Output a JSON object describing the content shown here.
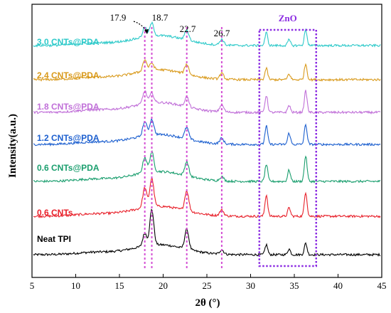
{
  "chart_data": {
    "type": "line",
    "title": "",
    "xlabel": "2θ (°)",
    "ylabel": "Intensity(a.u.)",
    "xlim": [
      5,
      45
    ],
    "x_ticks": [
      5,
      10,
      15,
      20,
      25,
      30,
      35,
      40,
      45
    ],
    "y_ticks_visible": false,
    "grid": false,
    "legend": "inline labels left of each curve",
    "peaks": [
      {
        "label": "17.9",
        "x": 17.9
      },
      {
        "label": "18.7",
        "x": 18.7
      },
      {
        "label": "22.7",
        "x": 22.7
      },
      {
        "label": "26.7",
        "x": 26.7
      }
    ],
    "zno_region": {
      "label": "ZnO",
      "x_start": 31.0,
      "x_end": 37.5,
      "color": "#8b2be2"
    },
    "peak_line_color": "#d44fd4",
    "series": [
      {
        "name": "Neat TPI",
        "color": "#000000",
        "offset": 0,
        "peaks": [
          [
            17.9,
            18
          ],
          [
            18.7,
            50
          ],
          [
            22.7,
            28
          ],
          [
            26.7,
            6
          ],
          [
            31.8,
            14
          ],
          [
            34.4,
            8
          ],
          [
            36.3,
            16
          ]
        ]
      },
      {
        "name": "0.6 CNTs",
        "color": "#e8202a",
        "offset": 1,
        "peaks": [
          [
            17.9,
            28
          ],
          [
            18.7,
            40
          ],
          [
            22.7,
            28
          ],
          [
            26.7,
            8
          ],
          [
            31.8,
            30
          ],
          [
            34.4,
            12
          ],
          [
            36.3,
            34
          ]
        ]
      },
      {
        "name": "0.6 CNTs@PDA",
        "color": "#1a9e6e",
        "offset": 2,
        "peaks": [
          [
            17.9,
            22
          ],
          [
            18.7,
            28
          ],
          [
            22.7,
            20
          ],
          [
            26.7,
            6
          ],
          [
            31.8,
            24
          ],
          [
            34.4,
            16
          ],
          [
            36.3,
            36
          ]
        ]
      },
      {
        "name": "1.2 CNTs@PDA",
        "color": "#1c5fcf",
        "offset": 3,
        "peaks": [
          [
            17.9,
            20
          ],
          [
            18.7,
            22
          ],
          [
            22.7,
            16
          ],
          [
            26.7,
            8
          ],
          [
            31.8,
            26
          ],
          [
            34.4,
            16
          ],
          [
            36.3,
            28
          ]
        ]
      },
      {
        "name": "1.8 CNTs@PDA",
        "color": "#c06fd8",
        "offset": 4,
        "peaks": [
          [
            17.9,
            18
          ],
          [
            18.7,
            14
          ],
          [
            22.7,
            14
          ],
          [
            26.7,
            10
          ],
          [
            31.8,
            24
          ],
          [
            34.4,
            10
          ],
          [
            36.3,
            30
          ]
        ]
      },
      {
        "name": "2.4 CNTs@PDA",
        "color": "#d99a1c",
        "offset": 5,
        "peaks": [
          [
            17.9,
            16
          ],
          [
            18.7,
            10
          ],
          [
            22.7,
            14
          ],
          [
            26.7,
            8
          ],
          [
            31.8,
            16
          ],
          [
            34.4,
            8
          ],
          [
            36.3,
            22
          ]
        ]
      },
      {
        "name": "3.0 CNTs@PDA",
        "color": "#2cc9c9",
        "offset": 6,
        "peaks": [
          [
            17.9,
            14
          ],
          [
            18.7,
            18
          ],
          [
            22.7,
            14
          ],
          [
            26.7,
            8
          ],
          [
            31.8,
            18
          ],
          [
            34.4,
            8
          ],
          [
            36.3,
            22
          ]
        ]
      }
    ]
  }
}
